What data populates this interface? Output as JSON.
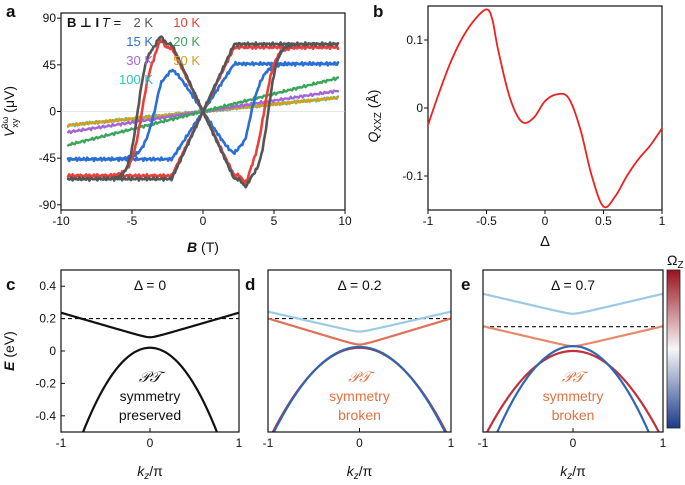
{
  "panel_letters": {
    "a": "a",
    "b": "b",
    "c": "c",
    "d": "d",
    "e": "e"
  },
  "colorbar": {
    "label": "Ω",
    "sub": "Z",
    "low_color": "#1a3a8a",
    "mid_color": "#f7f7f7",
    "high_color": "#9b1020"
  },
  "chart_data": [
    {
      "type": "line",
      "panel": "a",
      "title": "B ⊥ I",
      "xlabel_bold": "B",
      "xlabel_unit": " (T)",
      "ylabel_main": "V",
      "ylabel_sub": "xy",
      "ylabel_sup": "3ω",
      "ylabel_unit": " (μV)",
      "xlim": [
        -10,
        10
      ],
      "ylim": [
        -95,
        95
      ],
      "xticks": [
        -10,
        -5,
        0,
        5,
        10
      ],
      "yticks": [
        -90,
        -45,
        0,
        45,
        90
      ],
      "legend_prefix": "T =",
      "series": [
        {
          "name": "2 K",
          "color": "#555555",
          "sat": 65,
          "bc": 4.6,
          "w": 0.65,
          "spike": 8,
          "slope": 0
        },
        {
          "name": "10 K",
          "color": "#e8413c",
          "sat": 62,
          "bc": 4.3,
          "w": 0.75,
          "spike": 10,
          "slope": 0
        },
        {
          "name": "15 K",
          "color": "#2a6fd4",
          "sat": 46,
          "bc": 3.4,
          "w": 0.9,
          "spike": 6,
          "slope": 0
        },
        {
          "name": "20 K",
          "color": "#3aa55a",
          "sat": 0,
          "bc": 0,
          "w": 1,
          "spike": 0,
          "slope": 3.4
        },
        {
          "name": "30 K",
          "color": "#a565d8",
          "sat": 0,
          "bc": 0,
          "w": 1,
          "spike": 0,
          "slope": 2.1
        },
        {
          "name": "50 K",
          "color": "#d3a019",
          "sat": 0,
          "bc": 0,
          "w": 1,
          "spike": 0,
          "slope": 1.4
        },
        {
          "name": "100 K",
          "color": "#28c2cc",
          "sat": 0,
          "bc": 0,
          "w": 1,
          "spike": 0,
          "slope": 1.4
        }
      ]
    },
    {
      "type": "line",
      "panel": "b",
      "ylabel": "Q",
      "ylabel_sub": "XXZ",
      "ylabel_unit": " (Å)",
      "xlabel": "Δ",
      "xlim": [
        -1,
        1
      ],
      "ylim": [
        -0.15,
        0.15
      ],
      "xticks": [
        -1,
        -0.5,
        0,
        0.5,
        1
      ],
      "xticklabels": [
        "-1",
        "-0.5",
        "0",
        "0.5",
        "1"
      ],
      "yticks": [
        -0.1,
        0,
        0.1
      ],
      "yticklabels": [
        "-0.1",
        "0",
        "0.1"
      ],
      "series": [
        {
          "name": "Q_XXZ",
          "color": "#ee2020",
          "x": [
            -1,
            -0.9,
            -0.8,
            -0.7,
            -0.6,
            -0.5,
            -0.45,
            -0.4,
            -0.3,
            -0.2,
            -0.1,
            0,
            0.1,
            0.2,
            0.3,
            0.4,
            0.5,
            0.6,
            0.7,
            0.8,
            0.9,
            1
          ],
          "y": [
            -0.025,
            0.025,
            0.07,
            0.105,
            0.13,
            0.145,
            0.13,
            0.085,
            0.015,
            -0.02,
            -0.015,
            0.01,
            0.02,
            0.015,
            -0.03,
            -0.1,
            -0.145,
            -0.13,
            -0.1,
            -0.075,
            -0.055,
            -0.03
          ]
        }
      ]
    },
    {
      "type": "line",
      "panel": "c",
      "title": "Δ = 0",
      "xlabel_main": "k",
      "xlabel_sub": "z",
      "xlabel_tail": "/π",
      "ylabel_bold": "E",
      "ylabel_unit": " (eV)",
      "xlim": [
        -1,
        1
      ],
      "ylim": [
        -0.5,
        0.5
      ],
      "xticks": [
        -1,
        0,
        1
      ],
      "yticks": [
        -0.4,
        -0.2,
        0,
        0.2,
        0.4
      ],
      "yticklabels": [
        "-0.4",
        "-0.2",
        "0",
        "0.2",
        "0.4"
      ],
      "fermi_level": 0.2,
      "annotation_lines": [
        "𝒫𝒯",
        "symmetry",
        "preserved"
      ],
      "annotation_color": "#111111",
      "bands": [
        {
          "role": "conduction",
          "color": "#111111",
          "e0": 0.085,
          "a": 0.16,
          "c": 0.5
        },
        {
          "role": "valence",
          "color": "#111111",
          "e0": 0.02,
          "a": -0.92,
          "c": 0
        }
      ]
    },
    {
      "type": "line",
      "panel": "d",
      "title": "Δ = 0.2",
      "xlabel_main": "k",
      "xlabel_sub": "z",
      "xlabel_tail": "/π",
      "xlim": [
        -1,
        1
      ],
      "ylim": [
        -0.5,
        0.5
      ],
      "xticks": [
        -1,
        0,
        1
      ],
      "fermi_level": 0.2,
      "annotation_lines": [
        "𝒫𝒯",
        "symmetry",
        "broken"
      ],
      "annotation_color": "#e57040",
      "bands": [
        {
          "role": "upper-conduction",
          "color": "#9cc9e5",
          "e0": 0.12,
          "a": 0.13,
          "c": 0.35
        },
        {
          "role": "lower-conduction",
          "color": "#e07058",
          "e0": 0.04,
          "a": 0.17,
          "c": 0.4
        },
        {
          "role": "valence-red",
          "color": "#c0303a",
          "e0": 0.02,
          "a": -0.58,
          "c": 0
        },
        {
          "role": "valence-blue",
          "color": "#2f66b0",
          "e0": 0.025,
          "a": -0.6,
          "c": 0
        }
      ]
    },
    {
      "type": "line",
      "panel": "e",
      "title": "Δ = 0.7",
      "xlabel_main": "k",
      "xlabel_sub": "z",
      "xlabel_tail": "/π",
      "xlim": [
        -1,
        1
      ],
      "ylim": [
        -0.5,
        0.5
      ],
      "xticks": [
        -1,
        0,
        1
      ],
      "fermi_level": 0.15,
      "annotation_lines": [
        "𝒫𝒯",
        "symmetry",
        "broken"
      ],
      "annotation_color": "#e57040",
      "bands": [
        {
          "role": "upper-conduction",
          "color": "#9cc9e5",
          "e0": 0.23,
          "a": 0.13,
          "c": 0.35
        },
        {
          "role": "lower-conduction",
          "color": "#e88a6a",
          "e0": 0.03,
          "a": 0.13,
          "c": 0.3
        },
        {
          "role": "valence-red",
          "color": "#c0303a",
          "e0": 0.0,
          "a": -0.55,
          "c": 0
        },
        {
          "role": "valence-blue",
          "color": "#2f66b0",
          "e0": 0.03,
          "a": -0.75,
          "c": 0
        }
      ]
    }
  ]
}
